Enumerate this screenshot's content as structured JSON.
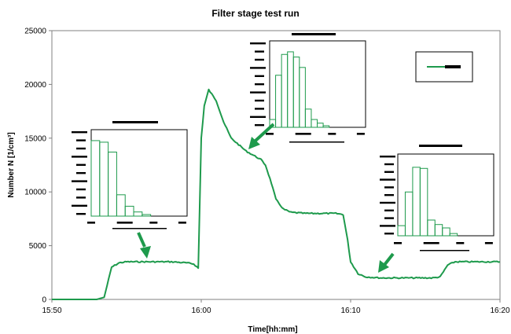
{
  "chart_data": {
    "type": "line",
    "title": "Filter stage test run",
    "xlabel": "Time[hh:mm]",
    "ylabel": "Number N [1/cm³]",
    "x_ticks": [
      "15:50",
      "16:00",
      "16:10",
      "16:20"
    ],
    "y_ticks": [
      0,
      5000,
      10000,
      15000,
      20000,
      25000
    ],
    "xlim": [
      "15:50",
      "16:20"
    ],
    "ylim": [
      0,
      25000
    ],
    "grid": false,
    "legend_position": "top-right",
    "colors": {
      "series": "#1e9a4c",
      "arrow": "#1e9a4c",
      "inset_bar": "#1e9a4c"
    },
    "series": [
      {
        "x": [
          "15:50",
          "15:52",
          "15:53",
          "15:53.5",
          "15:54",
          "15:54.5",
          "15:55",
          "15:56",
          "15:57",
          "15:58",
          "15:59",
          "15:59.5",
          "15:59.8",
          "16:00",
          "16:00.2",
          "16:00.5",
          "16:01",
          "16:01.5",
          "16:02",
          "16:03",
          "16:04",
          "16:04.3",
          "16:04.7",
          "16:05",
          "16:05.5",
          "16:06",
          "16:07",
          "16:08",
          "16:09",
          "16:09.5",
          "16:09.8",
          "16:10",
          "16:10.5",
          "16:11",
          "16:12",
          "16:13",
          "16:14",
          "16:15",
          "16:15.5",
          "16:16",
          "16:16.5",
          "16:17",
          "16:18",
          "16:19",
          "16:20"
        ],
        "y": [
          0,
          0,
          0,
          200,
          3000,
          3400,
          3500,
          3500,
          3500,
          3500,
          3400,
          3300,
          2900,
          15000,
          18000,
          19500,
          18500,
          16500,
          15000,
          13800,
          13000,
          12500,
          10800,
          9300,
          8400,
          8100,
          8000,
          8000,
          8000,
          7900,
          5500,
          3500,
          2400,
          2100,
          2000,
          2000,
          2000,
          2000,
          2000,
          2100,
          3200,
          3500,
          3500,
          3500,
          3500
        ]
      }
    ],
    "insets": [
      {
        "values": [
          14500,
          14200,
          12300,
          4100,
          1900,
          800,
          300
        ],
        "ymax": 16000,
        "label_bar": "▬▬▬▬▬▬▬▬",
        "tick_labels": "▬▬   ▬▬▬▬▬        ▬▬        ▬▬"
      },
      {
        "values": [
          1500,
          10000,
          14000,
          14500,
          13500,
          11500,
          3500,
          1500,
          800,
          300
        ],
        "ymax": 16000,
        "label_bar": "▬▬▬▬▬▬▬▬",
        "tick_labels": "   ▬▬    ▬▬▬▬      ▬▬      ▬▬"
      },
      {
        "values": [
          900,
          3900,
          6100,
          6000,
          1400,
          1000,
          700,
          200
        ],
        "ymax": 7000,
        "label_bar": "▬▬▬▬▬▬▬",
        "tick_labels": "▬▬      ▬▬▬▬       ▬▬      ▬▬"
      }
    ]
  }
}
